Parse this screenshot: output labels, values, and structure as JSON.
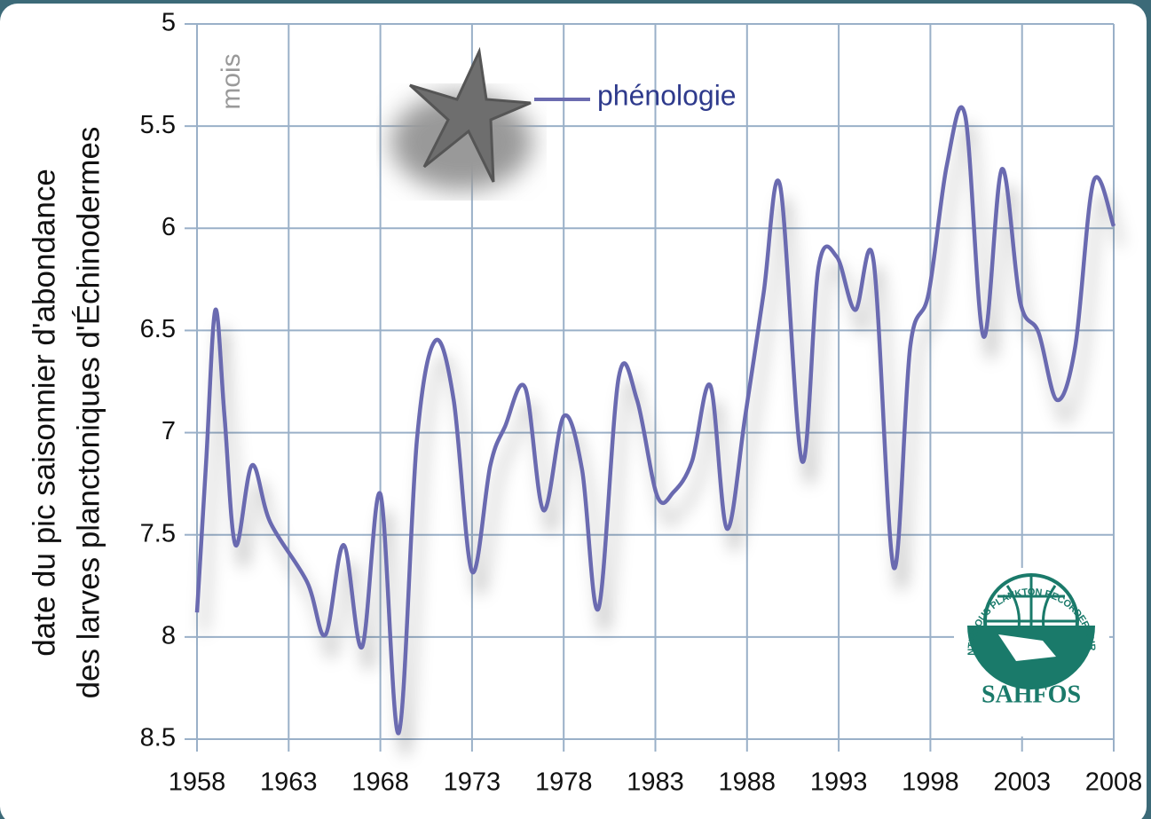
{
  "chart_data": {
    "type": "line",
    "ylabel": [
      "date du pic saisonnier d'abondance",
      "des larves planctoniques d'Échinodermes"
    ],
    "unit_label": "mois",
    "legend": "top-center",
    "grid": true,
    "y_inverted": true,
    "x": [
      1958.0,
      1958.5,
      1959.0,
      1959.5,
      1960.1,
      1961.0,
      1962.0,
      1964.0,
      1965.0,
      1966.0,
      1967.0,
      1968.0,
      1969.0,
      1970.0,
      1971.0,
      1972.0,
      1973.0,
      1974.0,
      1974.8,
      1975.9,
      1976.9,
      1978.0,
      1979.0,
      1979.9,
      1981.0,
      1982.0,
      1983.1,
      1984.0,
      1985.0,
      1986.0,
      1986.9,
      1987.9,
      1988.9,
      1989.8,
      1991.0,
      1991.9,
      1992.9,
      1993.9,
      1994.9,
      1996.0,
      1996.9,
      1997.9,
      1998.9,
      1999.9,
      2000.9,
      2001.9,
      2002.9,
      2003.9,
      2004.9,
      2005.9,
      2006.9,
      2008.0
    ],
    "series": [
      {
        "name": "phénologie",
        "color": "#6b6bb0",
        "values": [
          7.88,
          7.14,
          6.4,
          6.92,
          7.55,
          7.16,
          7.44,
          7.73,
          7.99,
          7.55,
          8.05,
          7.3,
          8.47,
          7.03,
          6.55,
          6.84,
          7.68,
          7.16,
          6.97,
          6.78,
          7.38,
          6.92,
          7.18,
          7.86,
          6.73,
          6.84,
          7.31,
          7.29,
          7.14,
          6.77,
          7.47,
          6.92,
          6.32,
          5.79,
          7.14,
          6.19,
          6.14,
          6.4,
          6.16,
          7.66,
          6.58,
          6.32,
          5.69,
          5.45,
          6.53,
          5.71,
          6.36,
          6.51,
          6.84,
          6.58,
          5.77,
          5.99
        ]
      }
    ],
    "xlim": [
      1958,
      2008
    ],
    "xticks": [
      1958,
      1963,
      1968,
      1973,
      1978,
      1983,
      1988,
      1993,
      1998,
      2003,
      2008
    ],
    "ylim": [
      5,
      8.5
    ],
    "yticks": [
      5,
      5.5,
      6,
      6.5,
      7,
      7.5,
      8,
      8.5
    ],
    "logo": {
      "arc_text": "CONTINUOUS PLANKTON RECORDER SURVEY",
      "name": "SAHFOS"
    }
  }
}
